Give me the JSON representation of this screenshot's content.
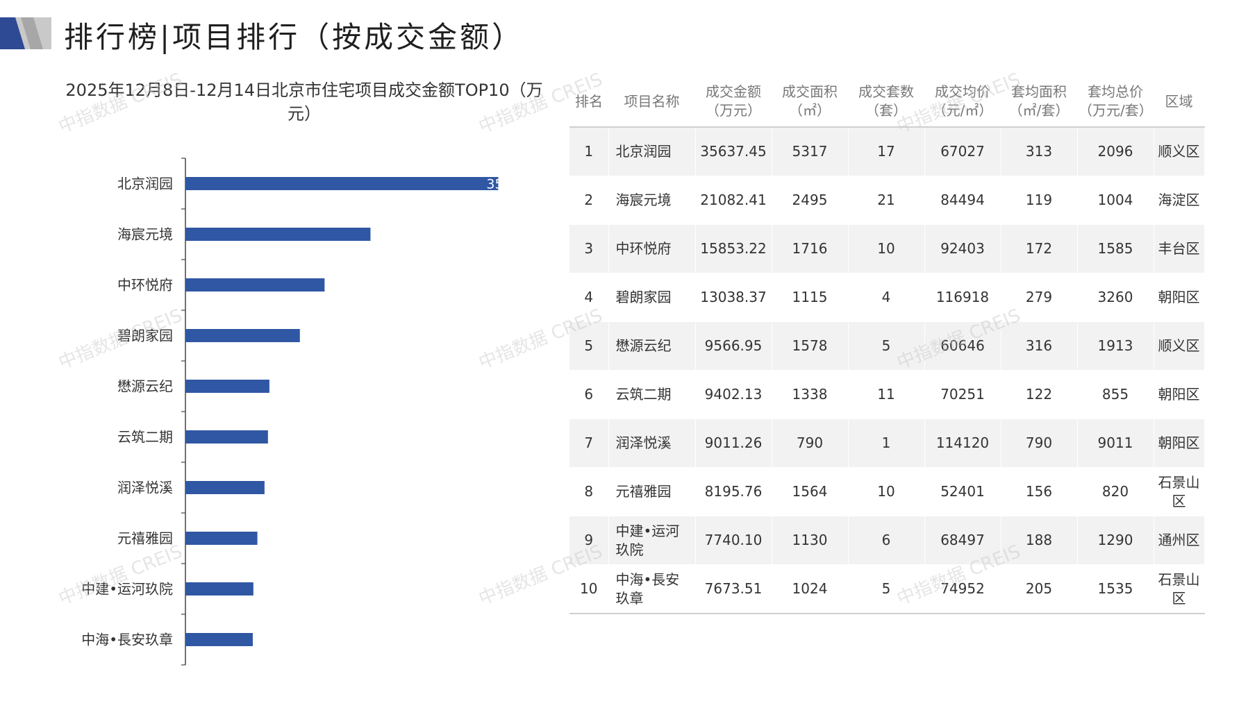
{
  "page": {
    "title": "排行榜|项目排行（按成交金额）"
  },
  "colors": {
    "bar": "#2f57a4",
    "logo_dark": "#2f4a94",
    "logo_light": "#c9c9c9"
  },
  "watermark": "中指数据 CREIS",
  "chart_data": {
    "type": "bar",
    "orientation": "horizontal",
    "title": "2025年12月8日-12月14日北京市住宅项目成交金额TOP10（万元）",
    "categories": [
      "北京润园",
      "海宸元境",
      "中环悦府",
      "碧朗家园",
      "懋源云纪",
      "云筑二期",
      "润泽悦溪",
      "元禧雅园",
      "中建•运河玖院",
      "中海•長安玖章"
    ],
    "values": [
      35637.45,
      21082.41,
      15853.22,
      13038.37,
      9566.95,
      9402.13,
      9011.26,
      8195.76,
      7740.1,
      7673.51
    ],
    "xlim": [
      0,
      36000
    ],
    "visible_data_label": "35",
    "grid": false,
    "legend": "none"
  },
  "table": {
    "headers": [
      "排名",
      "项目名称",
      "成交金额\n（万元）",
      "成交面积\n（㎡）",
      "成交套数\n（套）",
      "成交均价\n（元/㎡）",
      "套均面积\n（㎡/套）",
      "套均总价\n（万元/套）",
      "区域"
    ],
    "rows": [
      [
        "1",
        "北京润园",
        "35637.45",
        "5317",
        "17",
        "67027",
        "313",
        "2096",
        "顺义区"
      ],
      [
        "2",
        "海宸元境",
        "21082.41",
        "2495",
        "21",
        "84494",
        "119",
        "1004",
        "海淀区"
      ],
      [
        "3",
        "中环悦府",
        "15853.22",
        "1716",
        "10",
        "92403",
        "172",
        "1585",
        "丰台区"
      ],
      [
        "4",
        "碧朗家园",
        "13038.37",
        "1115",
        "4",
        "116918",
        "279",
        "3260",
        "朝阳区"
      ],
      [
        "5",
        "懋源云纪",
        "9566.95",
        "1578",
        "5",
        "60646",
        "316",
        "1913",
        "顺义区"
      ],
      [
        "6",
        "云筑二期",
        "9402.13",
        "1338",
        "11",
        "70251",
        "122",
        "855",
        "朝阳区"
      ],
      [
        "7",
        "润泽悦溪",
        "9011.26",
        "790",
        "1",
        "114120",
        "790",
        "9011",
        "朝阳区"
      ],
      [
        "8",
        "元禧雅园",
        "8195.76",
        "1564",
        "10",
        "52401",
        "156",
        "820",
        "石景山区"
      ],
      [
        "9",
        "中建•运河玖院",
        "7740.10",
        "1130",
        "6",
        "68497",
        "188",
        "1290",
        "通州区"
      ],
      [
        "10",
        "中海•長安玖章",
        "7673.51",
        "1024",
        "5",
        "74952",
        "205",
        "1535",
        "石景山区"
      ]
    ]
  }
}
